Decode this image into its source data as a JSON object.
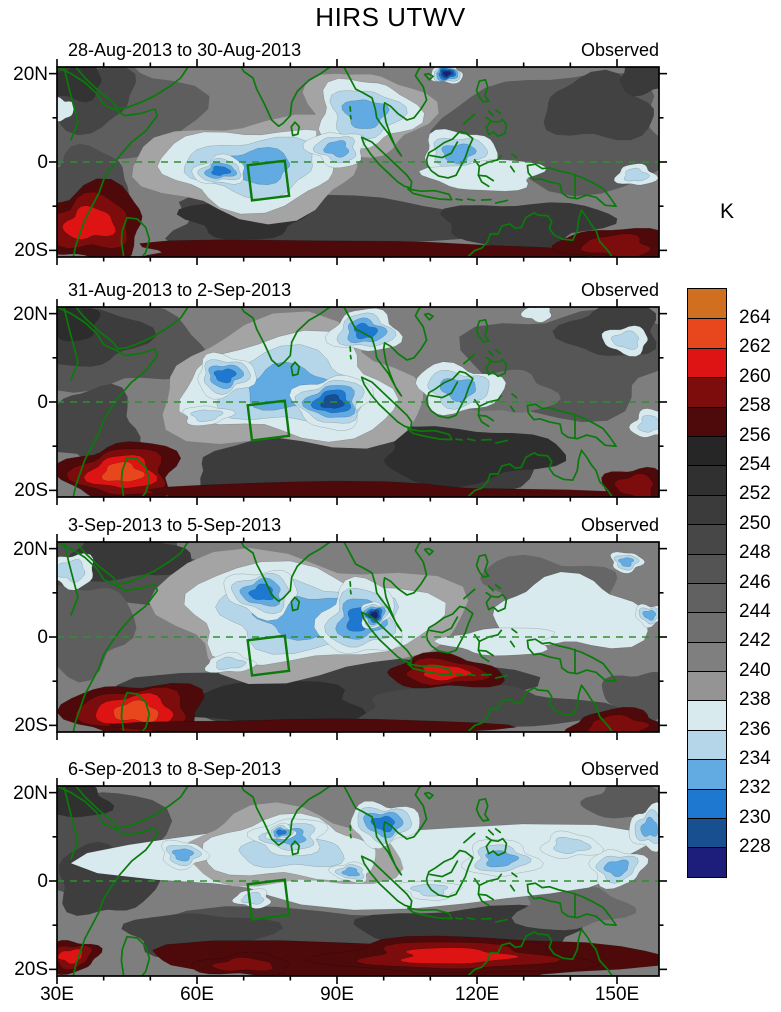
{
  "title": "HIRS UTWV",
  "unit_label": "K",
  "axes": {
    "x_tick_labels": [
      "30E",
      "60E",
      "90E",
      "120E",
      "150E"
    ],
    "x_tick_lons": [
      30,
      60,
      90,
      120,
      150
    ],
    "y_tick_labels": [
      "20N",
      "0",
      "20S"
    ],
    "y_tick_lats": [
      20,
      0,
      -20
    ],
    "lon_min": 30,
    "lon_max": 159,
    "lat_min": -21.5,
    "lat_max": 21.5
  },
  "colorbar": {
    "labels": [
      "264",
      "262",
      "260",
      "258",
      "256",
      "254",
      "252",
      "250",
      "248",
      "246",
      "244",
      "242",
      "240",
      "238",
      "236",
      "234",
      "232",
      "230",
      "228"
    ],
    "colors": [
      "#D06F1F",
      "#E8461C",
      "#DE1414",
      "#7D0D0D",
      "#4E0A0A",
      "#262626",
      "#303030",
      "#3B3B3B",
      "#474747",
      "#545454",
      "#616161",
      "#6F6F6F",
      "#7F7F7F",
      "#949494",
      "#D8EAEE",
      "#B5D6E8",
      "#62AAE2",
      "#1E78D0",
      "#174F90",
      "#1D1D7C"
    ],
    "unit": "K"
  },
  "chart_data": {
    "type": "heatmap",
    "title": "HIRS UTWV",
    "unit": "K",
    "levels": [
      228,
      230,
      232,
      234,
      236,
      238,
      240,
      242,
      244,
      246,
      248,
      250,
      252,
      254,
      256,
      258,
      260,
      262,
      264
    ],
    "lon_range": [
      30,
      159
    ],
    "lat_range": [
      -21.5,
      21.5
    ],
    "equator_dashed_line": true,
    "study_box": {
      "center_lon": 75.3,
      "center_lat": -4.2,
      "width_deg": 8,
      "height_deg": 8,
      "rotation_deg": -7
    },
    "panels": [
      {
        "title": "28-Aug-2013 to 30-Aug-2013",
        "tag": "Observed",
        "wet": [
          {
            "c": [
              72,
              -1
            ],
            "r": [
              20,
              8.5
            ],
            "d": 3,
            "halo": 1
          },
          {
            "c": [
              65,
              -2
            ],
            "r": [
              5.5,
              3.2
            ],
            "d": 4
          },
          {
            "c": [
              96,
              11
            ],
            "r": [
              10,
              8
            ],
            "d": 3,
            "halo": 1
          },
          {
            "c": [
              90,
              3
            ],
            "r": [
              6,
              4
            ],
            "d": 3
          },
          {
            "c": [
              113.5,
              20
            ],
            "r": [
              3.5,
              2.2
            ],
            "d": 6
          },
          {
            "c": [
              116,
              2
            ],
            "r": [
              8,
              5
            ],
            "d": 3
          },
          {
            "c": [
              122,
              -3
            ],
            "r": [
              12,
              3.5
            ],
            "d": 1
          },
          {
            "c": [
              154,
              -3
            ],
            "r": [
              4,
              2.5
            ],
            "d": 2
          },
          {
            "c": [
              31,
              12
            ],
            "r": [
              2.5,
              2.5
            ],
            "d": 1
          }
        ],
        "dry": [
          {
            "c": [
              37,
              -14
            ],
            "r": [
              12,
              8.5
            ],
            "d": 3
          },
          {
            "c": [
              90,
              -20.5
            ],
            "r": [
              45,
              3
            ],
            "d": 1
          },
          {
            "c": [
              150,
              -19
            ],
            "r": [
              12,
              4
            ],
            "d": 2
          }
        ],
        "gray": [
          {
            "c": [
              40,
              12
            ],
            "r": [
              20,
              12
            ],
            "col": "#5E5E5E"
          },
          {
            "c": [
              36,
              15
            ],
            "r": [
              11,
              7
            ],
            "col": "#454545"
          },
          {
            "c": [
              34,
              18
            ],
            "r": [
              6,
              4
            ],
            "col": "#333333"
          },
          {
            "c": [
              36,
              -4
            ],
            "r": [
              9,
              7
            ],
            "col": "#4E4E4E"
          },
          {
            "c": [
              85,
              -14
            ],
            "r": [
              32,
              7.5
            ],
            "col": "#454545"
          },
          {
            "c": [
              70,
              -13
            ],
            "r": [
              12,
              4.5
            ],
            "col": "#303030"
          },
          {
            "c": [
              138,
              7
            ],
            "r": [
              24,
              13
            ],
            "col": "#5A5A5A"
          },
          {
            "c": [
              146,
              12
            ],
            "r": [
              12,
              7
            ],
            "col": "#424242"
          },
          {
            "c": [
              156,
              19
            ],
            "r": [
              6,
              3.5
            ],
            "col": "#3A3A3A"
          },
          {
            "c": [
              130,
              -14
            ],
            "r": [
              18,
              5
            ],
            "col": "#383838"
          }
        ]
      },
      {
        "title": "31-Aug-2013 to 2-Sep-2013",
        "tag": "Observed",
        "wet": [
          {
            "c": [
              80,
              3
            ],
            "r": [
              23,
              11
            ],
            "d": 3,
            "halo": 1
          },
          {
            "c": [
              66,
              6
            ],
            "r": [
              6.5,
              4.5
            ],
            "d": 4
          },
          {
            "c": [
              89,
              0
            ],
            "r": [
              8,
              6
            ],
            "d": 5
          },
          {
            "c": [
              96,
              16
            ],
            "r": [
              7,
              5
            ],
            "d": 4
          },
          {
            "c": [
              116,
              3
            ],
            "r": [
              9,
              5.5
            ],
            "d": 3
          },
          {
            "c": [
              152,
              14
            ],
            "r": [
              5,
              3
            ],
            "d": 2
          },
          {
            "c": [
              157,
              -5
            ],
            "r": [
              4,
              3
            ],
            "d": 2
          },
          {
            "c": [
              62,
              -3
            ],
            "r": [
              5,
              2.2
            ],
            "d": 2
          },
          {
            "c": [
              133,
              20
            ],
            "r": [
              3,
              1.8
            ],
            "d": 1
          }
        ],
        "dry": [
          {
            "c": [
              44,
              -16
            ],
            "r": [
              12,
              7
            ],
            "d": 4
          },
          {
            "c": [
              95,
              -21
            ],
            "r": [
              48,
              2.8
            ],
            "d": 1
          },
          {
            "c": [
              154,
              -19
            ],
            "r": [
              7,
              4
            ],
            "d": 2
          }
        ],
        "gray": [
          {
            "c": [
              40,
              13
            ],
            "r": [
              20,
              11
            ],
            "col": "#555555"
          },
          {
            "c": [
              36,
              15
            ],
            "r": [
              12,
              7
            ],
            "col": "#3C3C3C"
          },
          {
            "c": [
              33,
              18
            ],
            "r": [
              6,
              4
            ],
            "col": "#2C2C2C"
          },
          {
            "c": [
              38,
              -6
            ],
            "r": [
              10,
              9
            ],
            "col": "#464646"
          },
          {
            "c": [
              95,
              -14
            ],
            "r": [
              38,
              8
            ],
            "col": "#3C3C3C"
          },
          {
            "c": [
              118,
              -12
            ],
            "r": [
              20,
              6
            ],
            "col": "#2E2E2E"
          },
          {
            "c": [
              140,
              9
            ],
            "r": [
              22,
              12
            ],
            "col": "#565656"
          },
          {
            "c": [
              149,
              16
            ],
            "r": [
              10,
              6
            ],
            "col": "#3E3E3E"
          },
          {
            "c": [
              127,
              2
            ],
            "r": [
              9,
              5
            ],
            "col": "#6E6E6E"
          }
        ]
      },
      {
        "title": "3-Sep-2013 to 5-Sep-2013",
        "tag": "Observed",
        "wet": [
          {
            "c": [
              83,
              5
            ],
            "r": [
              26,
              11
            ],
            "d": 3,
            "halo": 1
          },
          {
            "c": [
              74,
              10
            ],
            "r": [
              8,
              5
            ],
            "d": 4
          },
          {
            "c": [
              95,
              4
            ],
            "r": [
              9,
              8
            ],
            "d": 4
          },
          {
            "c": [
              98,
              5
            ],
            "r": [
              3,
              3
            ],
            "d": 6
          },
          {
            "c": [
              33,
              15
            ],
            "r": [
              5,
              4
            ],
            "d": 2
          },
          {
            "c": [
              140,
              5
            ],
            "r": [
              16,
              8
            ],
            "d": 1
          },
          {
            "c": [
              152,
              17
            ],
            "r": [
              3.5,
              2.2
            ],
            "d": 3
          },
          {
            "c": [
              125,
              -1
            ],
            "r": [
              12,
              3
            ],
            "d": 1
          },
          {
            "c": [
              67,
              -6
            ],
            "r": [
              5,
              2.2
            ],
            "d": 2
          },
          {
            "c": [
              157,
              5
            ],
            "r": [
              3,
              2.5
            ],
            "d": 3
          }
        ],
        "dry": [
          {
            "c": [
              47,
              -17
            ],
            "r": [
              14,
              7
            ],
            "d": 4
          },
          {
            "c": [
              113,
              -8
            ],
            "r": [
              12,
              3.8
            ],
            "d": 3
          },
          {
            "c": [
              85,
              -21
            ],
            "r": [
              40,
              2.5
            ],
            "d": 1
          },
          {
            "c": [
              150,
              -20
            ],
            "r": [
              10,
              3.5
            ],
            "d": 2
          }
        ],
        "gray": [
          {
            "c": [
              42,
              16
            ],
            "r": [
              22,
              8
            ],
            "col": "#505050"
          },
          {
            "c": [
              45,
              18
            ],
            "r": [
              14,
              5
            ],
            "col": "#383838"
          },
          {
            "c": [
              36,
              2
            ],
            "r": [
              10,
              10
            ],
            "col": "#5E5E5E"
          },
          {
            "c": [
              90,
              -13
            ],
            "r": [
              40,
              8
            ],
            "col": "#404040"
          },
          {
            "c": [
              75,
              -15
            ],
            "r": [
              20,
              5
            ],
            "col": "#2E2E2E"
          },
          {
            "c": [
              120,
              -16
            ],
            "r": [
              25,
              5
            ],
            "col": "#484848"
          },
          {
            "c": [
              135,
              12
            ],
            "r": [
              14,
              6
            ],
            "col": "#666666"
          },
          {
            "c": [
              155,
              -13
            ],
            "r": [
              8,
              5
            ],
            "col": "#555555"
          }
        ]
      },
      {
        "title": "6-Sep-2013 to 8-Sep-2013",
        "tag": "Observed",
        "wet": [
          {
            "c": [
              100,
              4
            ],
            "r": [
              55,
              9.5
            ],
            "d": 1
          },
          {
            "c": [
              80,
              7
            ],
            "r": [
              18,
              7
            ],
            "d": 2,
            "halo": 1
          },
          {
            "c": [
              57,
              6
            ],
            "r": [
              5,
              3
            ],
            "d": 3
          },
          {
            "c": [
              80,
              10
            ],
            "r": [
              8,
              4
            ],
            "d": 3
          },
          {
            "c": [
              78,
              11
            ],
            "r": [
              3,
              1.8
            ],
            "d": 4
          },
          {
            "c": [
              100,
              13
            ],
            "r": [
              7,
              5
            ],
            "d": 4
          },
          {
            "c": [
              93,
              2
            ],
            "r": [
              4,
              2.2
            ],
            "d": 3
          },
          {
            "c": [
              125,
              5
            ],
            "r": [
              8,
              4
            ],
            "d": 3
          },
          {
            "c": [
              150,
              3
            ],
            "r": [
              6,
              4
            ],
            "d": 3
          },
          {
            "c": [
              157,
              12
            ],
            "r": [
              4,
              5
            ],
            "d": 3
          },
          {
            "c": [
              140,
              8
            ],
            "r": [
              6,
              3
            ],
            "d": 2
          },
          {
            "c": [
              110,
              -2
            ],
            "r": [
              6,
              2.2
            ],
            "d": 2
          },
          {
            "c": [
              72,
              -4
            ],
            "r": [
              4,
              2
            ],
            "d": 2
          }
        ],
        "dry": [
          {
            "c": [
              105,
              -18
            ],
            "r": [
              52,
              5
            ],
            "d": 1
          },
          {
            "c": [
              115,
              -17
            ],
            "r": [
              28,
              4
            ],
            "d": 3
          },
          {
            "c": [
              33,
              -17
            ],
            "r": [
              6,
              3.5
            ],
            "d": 3
          },
          {
            "c": [
              70,
              -19
            ],
            "r": [
              10,
              2.5
            ],
            "d": 2
          }
        ],
        "gray": [
          {
            "c": [
              38,
              8
            ],
            "r": [
              16,
              12
            ],
            "col": "#4E4E4E"
          },
          {
            "c": [
              33,
              18
            ],
            "r": [
              8,
              4
            ],
            "col": "#303030"
          },
          {
            "c": [
              40,
              0
            ],
            "r": [
              10,
              8
            ],
            "col": "#3E3E3E"
          },
          {
            "c": [
              90,
              -13
            ],
            "r": [
              40,
              7
            ],
            "col": "#505050"
          },
          {
            "c": [
              120,
              -11
            ],
            "r": [
              25,
              5
            ],
            "col": "#383838"
          },
          {
            "c": [
              152,
              18
            ],
            "r": [
              9,
              4
            ],
            "col": "#5A5A5A"
          },
          {
            "c": [
              140,
              -6
            ],
            "r": [
              12,
              5
            ],
            "col": "#6A6A6A"
          },
          {
            "c": [
              60,
              -12
            ],
            "r": [
              15,
              5
            ],
            "col": "#424242"
          }
        ]
      }
    ]
  }
}
